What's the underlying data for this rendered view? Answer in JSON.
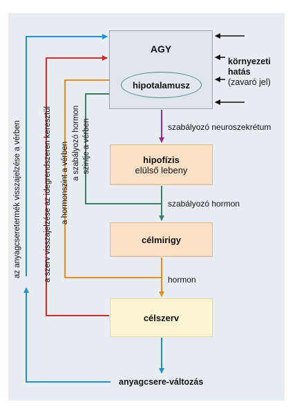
{
  "nodes": {
    "agy": "AGY",
    "hipotalamusz": "hipotalamusz",
    "hipofizis_line1": "hipofízis",
    "hipofizis_line2": "elülső lebeny",
    "celmirigy": "célmirigy",
    "celszerv": "célszerv",
    "anyagcsere": "anyagcsere-változás"
  },
  "environment": {
    "line1": "környezeti",
    "line2": "hatás",
    "line3": "(zavaró jel)"
  },
  "edge_labels": {
    "neuroszekretum": "szabályozó neuroszekrétum",
    "szabalyozo_hormon": "szabályozó hormon",
    "hormon": "hormon"
  },
  "feedback_labels": {
    "blue": "az anyagcseretermék visszajelzése a vérben",
    "red": "a szerv visszajelzése az idegrendszeren keresztül",
    "orange": "a hormonszint a vérben",
    "green_line1": "a szabályozó hormon",
    "green_line2": "szintje a vérben"
  },
  "colors": {
    "panel": "#e8edf2",
    "blue": "#1e8fd0",
    "red": "#d42a2a",
    "orange": "#f08a1c",
    "green": "#3d7d66",
    "purple": "#9a2a88",
    "black": "#111111"
  }
}
